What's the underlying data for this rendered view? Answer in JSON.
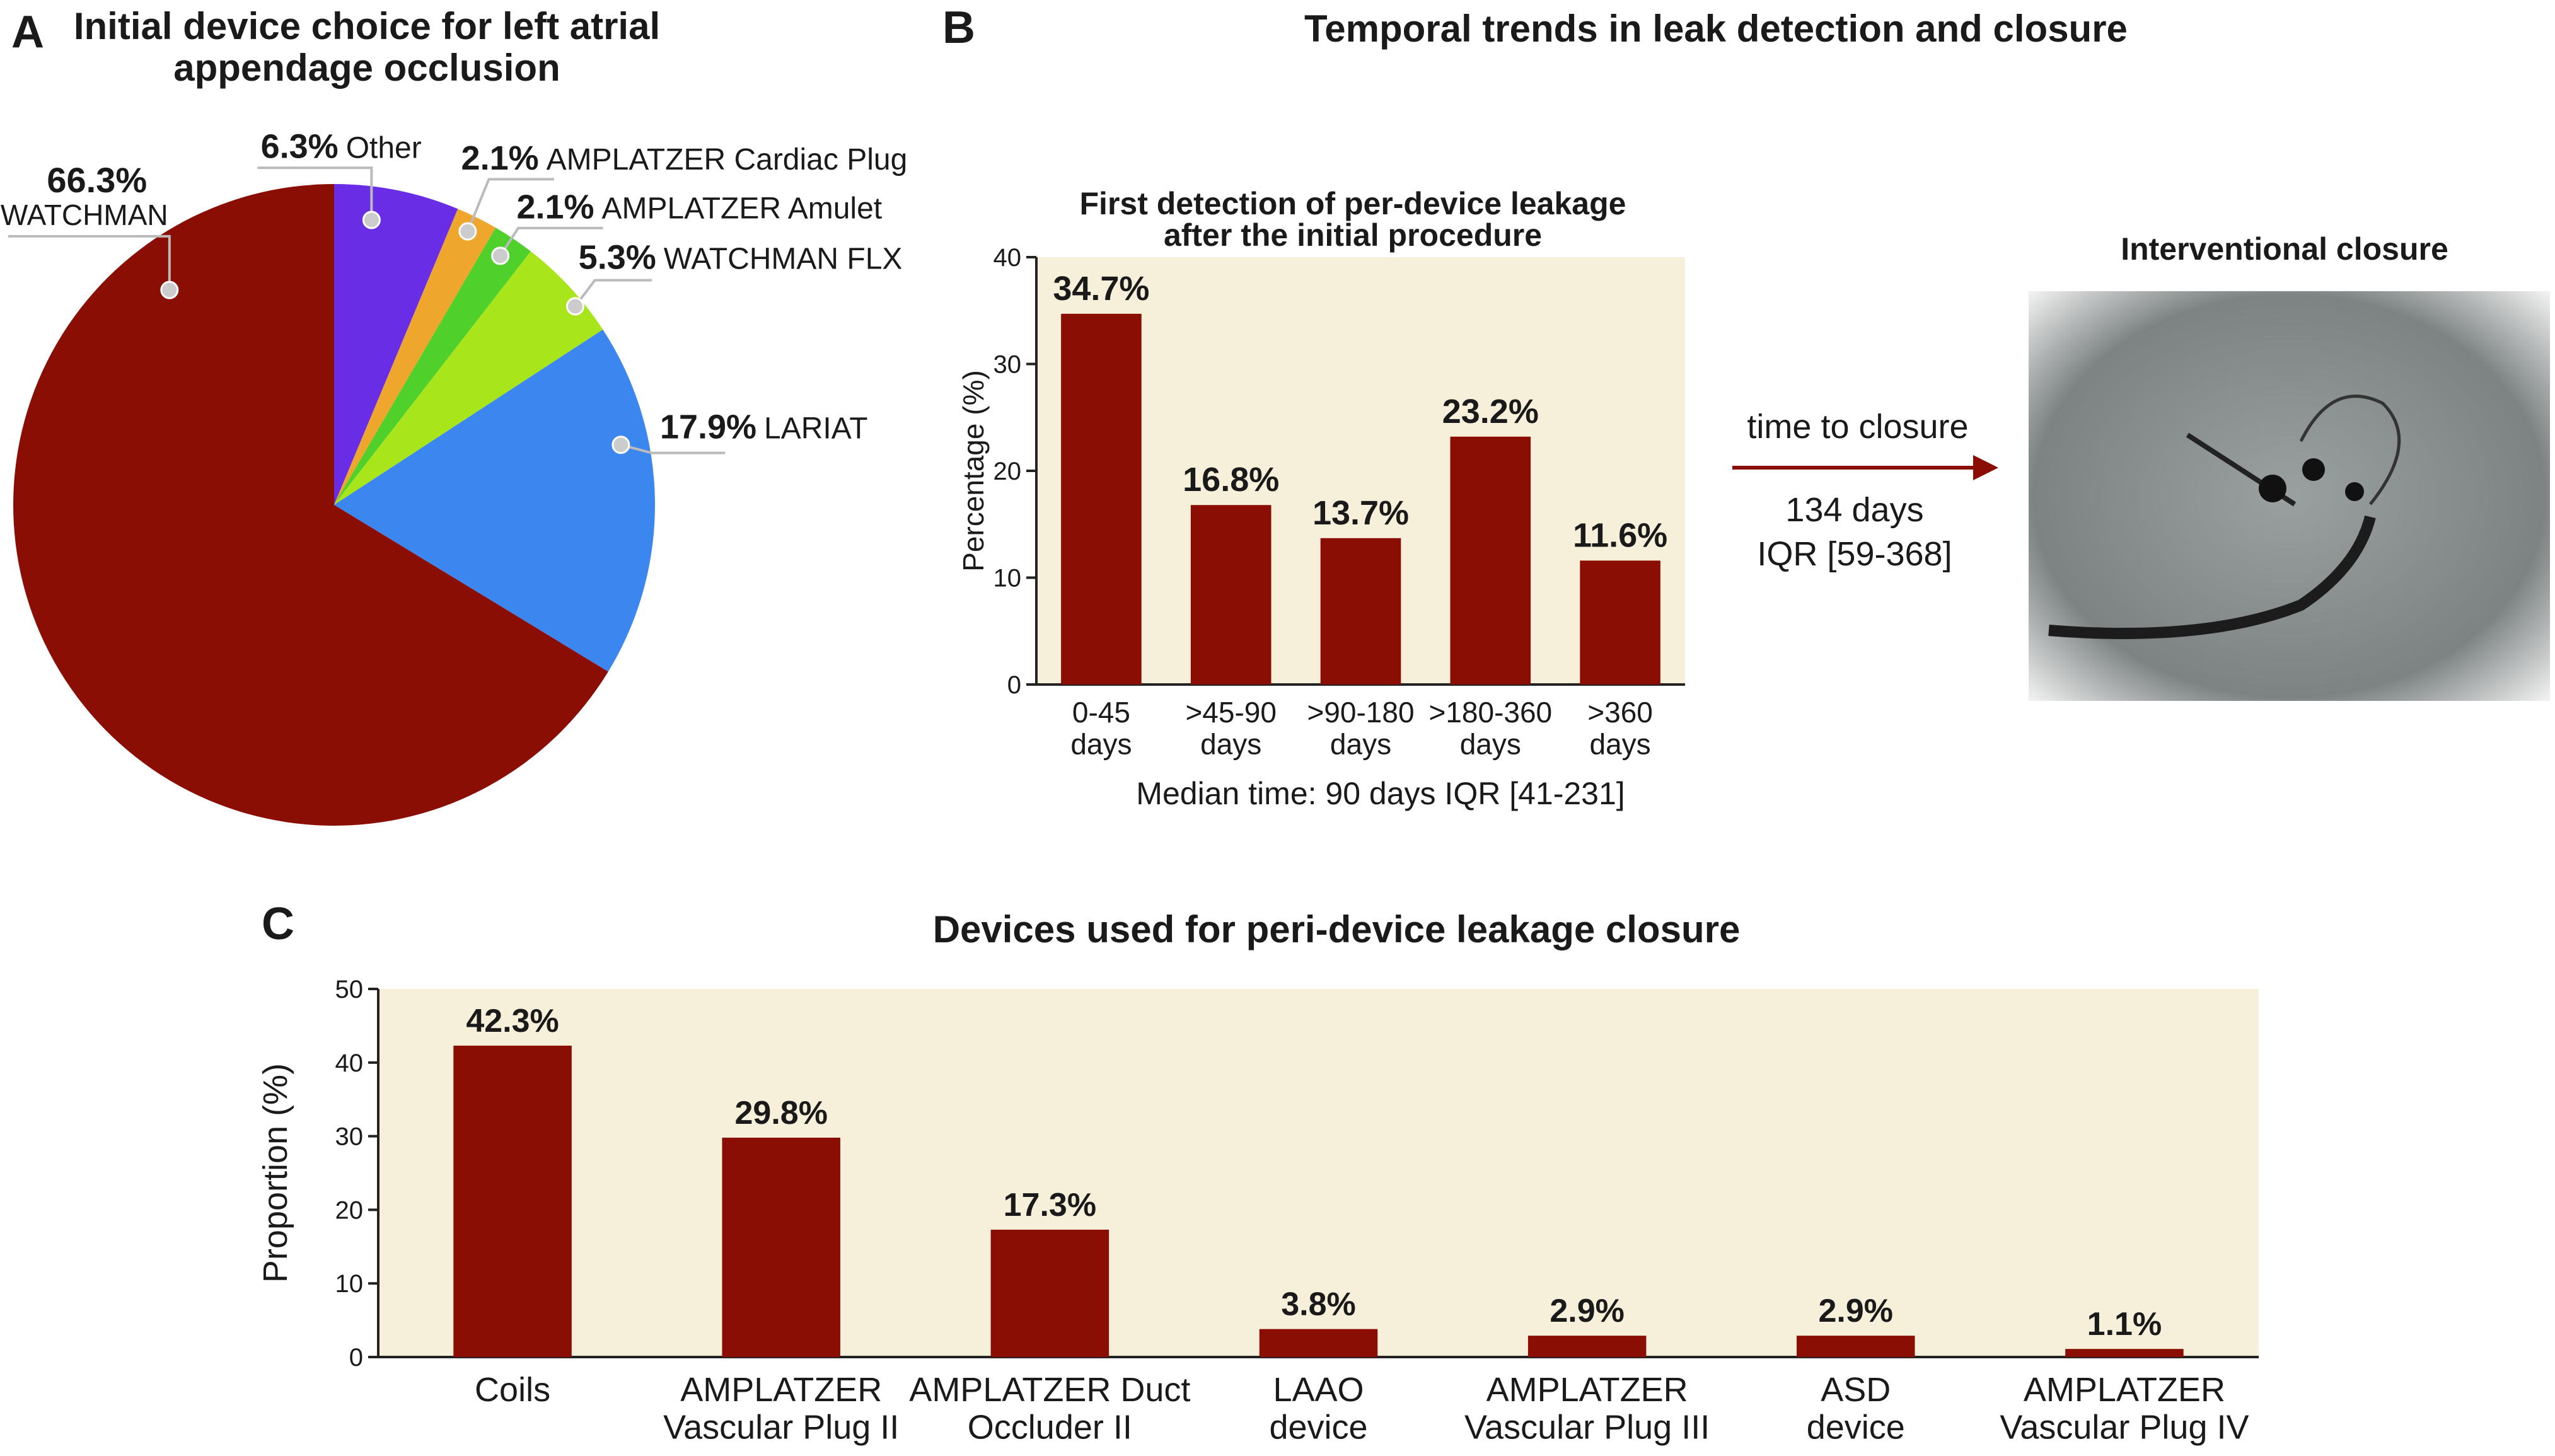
{
  "chart_data": [
    {
      "type": "pie",
      "panel": "A",
      "title": "Initial device choice for left atrial\nappendage occlusion",
      "categories": [
        "Other",
        "AMPLATZER  Cardiac Plug",
        "AMPLATZER Amulet",
        "WATCHMAN FLX",
        "LARIAT",
        "WATCHMAN"
      ],
      "values": [
        6.3,
        2.1,
        2.1,
        5.3,
        17.9,
        66.3
      ],
      "value_labels": [
        "6.3%",
        "2.1%",
        "2.1%",
        "5.3%",
        "17.9%",
        "66.3%"
      ],
      "colors": [
        "#6a2de6",
        "#eea62c",
        "#4fd02a",
        "#a9e51b",
        "#3c86f0",
        "#8b0e04"
      ]
    },
    {
      "type": "bar",
      "panel": "B",
      "panel_title": "Temporal trends in leak detection and closure",
      "title": "First detection of per-device leakage\nafter the initial procedure",
      "categories": [
        "0-45\ndays",
        ">45-90\ndays",
        ">90-180\ndays",
        ">180-360\ndays",
        ">360\ndays"
      ],
      "values": [
        34.7,
        16.8,
        13.7,
        23.2,
        11.6
      ],
      "value_labels": [
        "34.7%",
        "16.8%",
        "13.7%",
        "23.2%",
        "11.6%"
      ],
      "color": "#8b0e04",
      "ylim": [
        0,
        40
      ],
      "yticks": [
        0,
        10,
        20,
        30,
        40
      ],
      "ylabel": "Percentage (%)",
      "xlabel": "Median time: 90 days IQR [41-231]",
      "annotations": {
        "arrow_label": "time to closure",
        "arrow_value": "134 days",
        "arrow_range": "IQR [59-368]",
        "image_title": "Interventional closure"
      }
    },
    {
      "type": "bar",
      "panel": "C",
      "title": "Devices used for peri-device leakage closure",
      "categories": [
        "Coils",
        "AMPLATZER\nVascular Plug II",
        "AMPLATZER Duct\nOccluder II",
        "LAAO\ndevice",
        "AMPLATZER\nVascular Plug III",
        "ASD\ndevice",
        "AMPLATZER\nVascular Plug IV"
      ],
      "values": [
        42.3,
        29.8,
        17.3,
        3.8,
        2.9,
        2.9,
        1.1
      ],
      "value_labels": [
        "42.3%",
        "29.8%",
        "17.3%",
        "3.8%",
        "2.9%",
        "2.9%",
        "1.1%"
      ],
      "color": "#8b0e04",
      "ylim": [
        0,
        50
      ],
      "yticks": [
        0,
        10,
        20,
        30,
        40,
        50
      ],
      "ylabel": "Proportion (%)"
    }
  ]
}
